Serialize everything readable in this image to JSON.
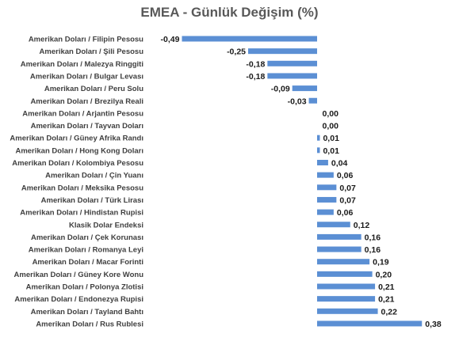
{
  "chart_data": {
    "type": "bar",
    "orientation": "horizontal",
    "title": "EMEA - Günlük Değişim (%)",
    "xlabel": "",
    "ylabel": "",
    "grid": false,
    "legend": "none",
    "bar_color": "#5b8fd4",
    "xlim": [
      -0.6,
      0.4
    ],
    "categories": [
      "Amerikan Doları / Filipin Pesosu",
      "Amerikan Doları / Şili Pesosu",
      "Amerikan Doları / Malezya Ringgiti",
      "Amerikan Doları / Bulgar Levası",
      "Amerikan Doları / Peru Solu",
      "Amerikan Doları / Brezilya Reali",
      "Amerikan Doları / Arjantin Pesosu",
      "Amerikan Doları / Tayvan Doları",
      "Amerikan Doları / Güney Afrika Randı",
      "Amerikan Doları / Hong Kong Doları",
      "Amerikan Doları / Kolombiya Pesosu",
      "Amerikan Doları / Çin Yuanı",
      "Amerikan Doları / Meksika Pesosu",
      "Amerikan Doları / Türk Lirası",
      "Amerikan Doları / Hindistan Rupisi",
      "Klasik Dolar Endeksi",
      "Amerikan Doları / Çek Korunası",
      "Amerikan Doları / Romanya Leyi",
      "Amerikan Doları / Macar Forinti",
      "Amerikan Doları / Güney Kore Wonu",
      "Amerikan Doları / Polonya Zlotisi",
      "Amerikan Doları / Endonezya Rupisi",
      "Amerikan Doları / Tayland Bahtı",
      "Amerikan Doları / Rus Rublesi"
    ],
    "values": [
      -0.49,
      -0.25,
      -0.18,
      -0.18,
      -0.09,
      -0.03,
      0.0,
      0.0,
      0.01,
      0.01,
      0.04,
      0.06,
      0.07,
      0.07,
      0.06,
      0.12,
      0.16,
      0.16,
      0.19,
      0.2,
      0.21,
      0.21,
      0.22,
      0.38
    ],
    "value_labels": [
      "-0,49",
      "-0,25",
      "-0,18",
      "-0,18",
      "-0,09",
      "-0,03",
      "0,00",
      "0,00",
      "0,01",
      "0,01",
      "0,04",
      "0,06",
      "0,07",
      "0,07",
      "0,06",
      "0,12",
      "0,16",
      "0,16",
      "0,19",
      "0,20",
      "0,21",
      "0,21",
      "0,22",
      "0,38"
    ]
  }
}
